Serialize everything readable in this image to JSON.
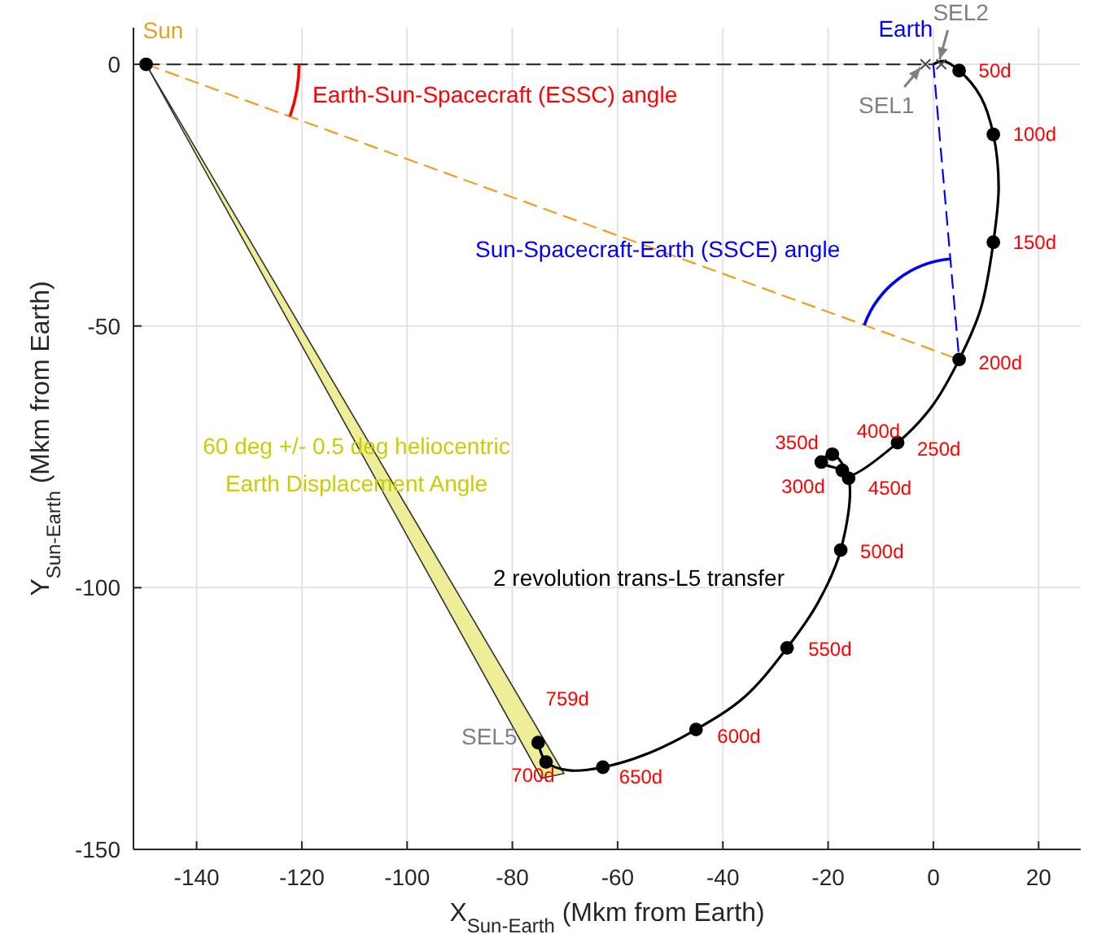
{
  "chart_data": {
    "type": "line",
    "xlabel": "X$_{Sun-Earth}$ (Mkm from Earth)",
    "ylabel": "Y$_{Sun-Earth}$ (Mkm from Earth)",
    "xlim": [
      -152,
      28
    ],
    "ylim": [
      -150,
      7
    ],
    "xticks": [
      -140,
      -120,
      -100,
      -80,
      -60,
      -40,
      -20,
      0,
      20
    ],
    "yticks": [
      -150,
      -100,
      -50,
      0
    ],
    "grid": true,
    "series": [
      {
        "color": "#000000",
        "line_style": "solid",
        "x": [
          0,
          1.9,
          4.9,
          9,
          11.4,
          12.4,
          11.4,
          9,
          4.9,
          -0.3,
          -6.8,
          -16.1,
          -17.3,
          -21.3,
          -19.2,
          -16.1,
          -17.6,
          -21.9,
          -27.8,
          -35.9,
          -45.1,
          -53.8,
          -62.8,
          -69.2,
          -73.6,
          -75.1
        ],
        "values": [
          0,
          0.6,
          -1.2,
          -6.2,
          -13.4,
          -23.4,
          -34,
          -46.7,
          -56.4,
          -65.4,
          -72.3,
          -78.6,
          -77.6,
          -76,
          -74.5,
          -79.1,
          -92.8,
          -102.8,
          -111.5,
          -120.9,
          -127.1,
          -131.5,
          -134.3,
          -134.9,
          -133.3,
          -129.6
        ]
      },
      {
        "color": "#333333",
        "line_style": "dashed",
        "x": [
          -149.6,
          0
        ],
        "values": [
          0,
          0
        ]
      },
      {
        "color": "#f0a020",
        "line_style": "dashed",
        "x": [
          -149.6,
          4.9
        ],
        "values": [
          0,
          -56.4
        ]
      },
      {
        "color": "#0000ff",
        "line_style": "dashed",
        "x": [
          0,
          4.9
        ],
        "values": [
          0,
          -56.4
        ]
      },
      {
        "type": "area",
        "color": "#eeee99",
        "x": [
          -149.6,
          -74.5,
          -70.2
        ],
        "values": [
          0,
          -136.4,
          -135.5
        ]
      },
      {
        "type": "scatter",
        "color": "#000000",
        "marker": "circle",
        "x": [
          4.9,
          11.4,
          11.4,
          4.9,
          -6.8,
          -17.3,
          -21.3,
          -19.2,
          -16.1,
          -17.6,
          -27.8,
          -45.1,
          -62.8,
          -73.6,
          -75.1
        ],
        "values": [
          -1.2,
          -13.4,
          -34,
          -56.4,
          -72.3,
          -77.6,
          -76,
          -74.5,
          -79.1,
          -92.8,
          -111.5,
          -127.1,
          -134.3,
          -133.3,
          -129.6
        ]
      },
      {
        "type": "scatter",
        "color": "#000000",
        "marker": "circle",
        "x": [
          -149.6
        ],
        "values": [
          0
        ]
      },
      {
        "type": "scatter",
        "color": "#444444",
        "marker": "cross",
        "x": [
          -1.5,
          1.5
        ],
        "values": [
          0,
          0
        ]
      }
    ],
    "annotations": [
      {
        "text": "Sun",
        "x": -149.6,
        "y": 0
      },
      {
        "text": "Earth",
        "x": 0,
        "y": 0
      },
      {
        "text": "SEL1",
        "x": -1.5,
        "y": 0
      },
      {
        "text": "SEL2",
        "x": 1.5,
        "y": 0
      },
      {
        "text": "SEL5",
        "x": -74.8,
        "y": -129.6
      },
      "Earth-Sun-Spacecraft (ESSC) angle",
      "Sun-Spacecraft-Earth (SSCE) angle",
      "60 deg +/- 0.5 deg heliocentric\nEarth Displacement Angle",
      "2 revolution trans-L5 transfer",
      {
        "text": "50d",
        "x": 4.9,
        "y": -1.2
      },
      {
        "text": "100d",
        "x": 11.4,
        "y": -13.4
      },
      {
        "text": "150d",
        "x": 11.4,
        "y": -34
      },
      {
        "text": "200d",
        "x": 4.9,
        "y": -56.4
      },
      {
        "text": "250d",
        "x": -6.8,
        "y": -72.3
      },
      {
        "text": "300d",
        "x": -17.3,
        "y": -77.6
      },
      {
        "text": "350d",
        "x": -21.3,
        "y": -76
      },
      {
        "text": "400d",
        "x": -19.2,
        "y": -74.5
      },
      {
        "text": "450d",
        "x": -16.1,
        "y": -79.1
      },
      {
        "text": "500d",
        "x": -17.6,
        "y": -92.8
      },
      {
        "text": "550d",
        "x": -27.8,
        "y": -111.5
      },
      {
        "text": "600d",
        "x": -45.1,
        "y": -127.1
      },
      {
        "text": "650d",
        "x": -62.8,
        "y": -134.3
      },
      {
        "text": "700d",
        "x": -73.6,
        "y": -133.3
      },
      {
        "text": "759d",
        "x": -75.1,
        "y": -129.6
      }
    ]
  }
}
